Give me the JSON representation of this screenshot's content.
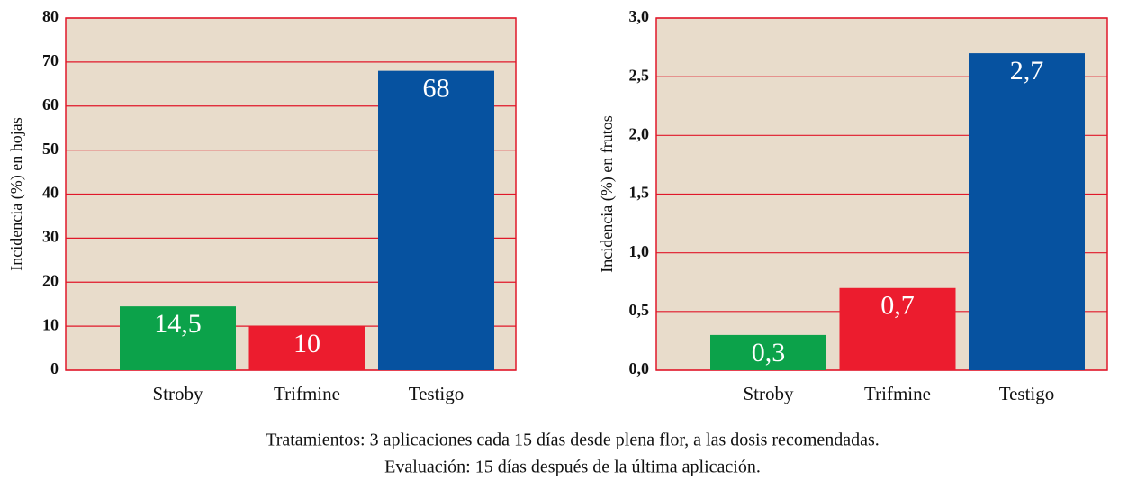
{
  "chart_data": [
    {
      "type": "bar",
      "y_label": "Incidencia (%) en hojas",
      "categories": [
        "Stroby",
        "Trifmine",
        "Testigo"
      ],
      "values": [
        14.5,
        10,
        68
      ],
      "value_labels": [
        "14,5",
        "10",
        "68"
      ],
      "colors": [
        "#0ca24a",
        "#ec1c2e",
        "#0652a0"
      ],
      "ylim": [
        0,
        80
      ],
      "yticks": [
        0,
        10,
        20,
        30,
        40,
        50,
        60,
        70,
        80
      ],
      "grid": true
    },
    {
      "type": "bar",
      "y_label": "Incidencia (%) en frutos",
      "categories": [
        "Stroby",
        "Trifmine",
        "Testigo"
      ],
      "values": [
        0.3,
        0.7,
        2.7
      ],
      "value_labels": [
        "0,3",
        "0,7",
        "2,7"
      ],
      "colors": [
        "#0ca24a",
        "#ec1c2e",
        "#0652a0"
      ],
      "ylim": [
        0,
        3
      ],
      "yticks": [
        {
          "value": 0,
          "label": "0,0"
        },
        {
          "value": 0.5,
          "label": "0,5"
        },
        {
          "value": 1,
          "label": "1,0"
        },
        {
          "value": 1.5,
          "label": "1,5"
        },
        {
          "value": 2,
          "label": "2,0"
        },
        {
          "value": 2.5,
          "label": "2,5"
        },
        {
          "value": 3,
          "label": "3,0"
        }
      ],
      "grid": true
    }
  ],
  "caption": [
    "Tratamientos: 3 aplicaciones cada 15 días desde plena flor, a las dosis recomendadas.",
    "Evaluación: 15 días después de la última aplicación."
  ]
}
